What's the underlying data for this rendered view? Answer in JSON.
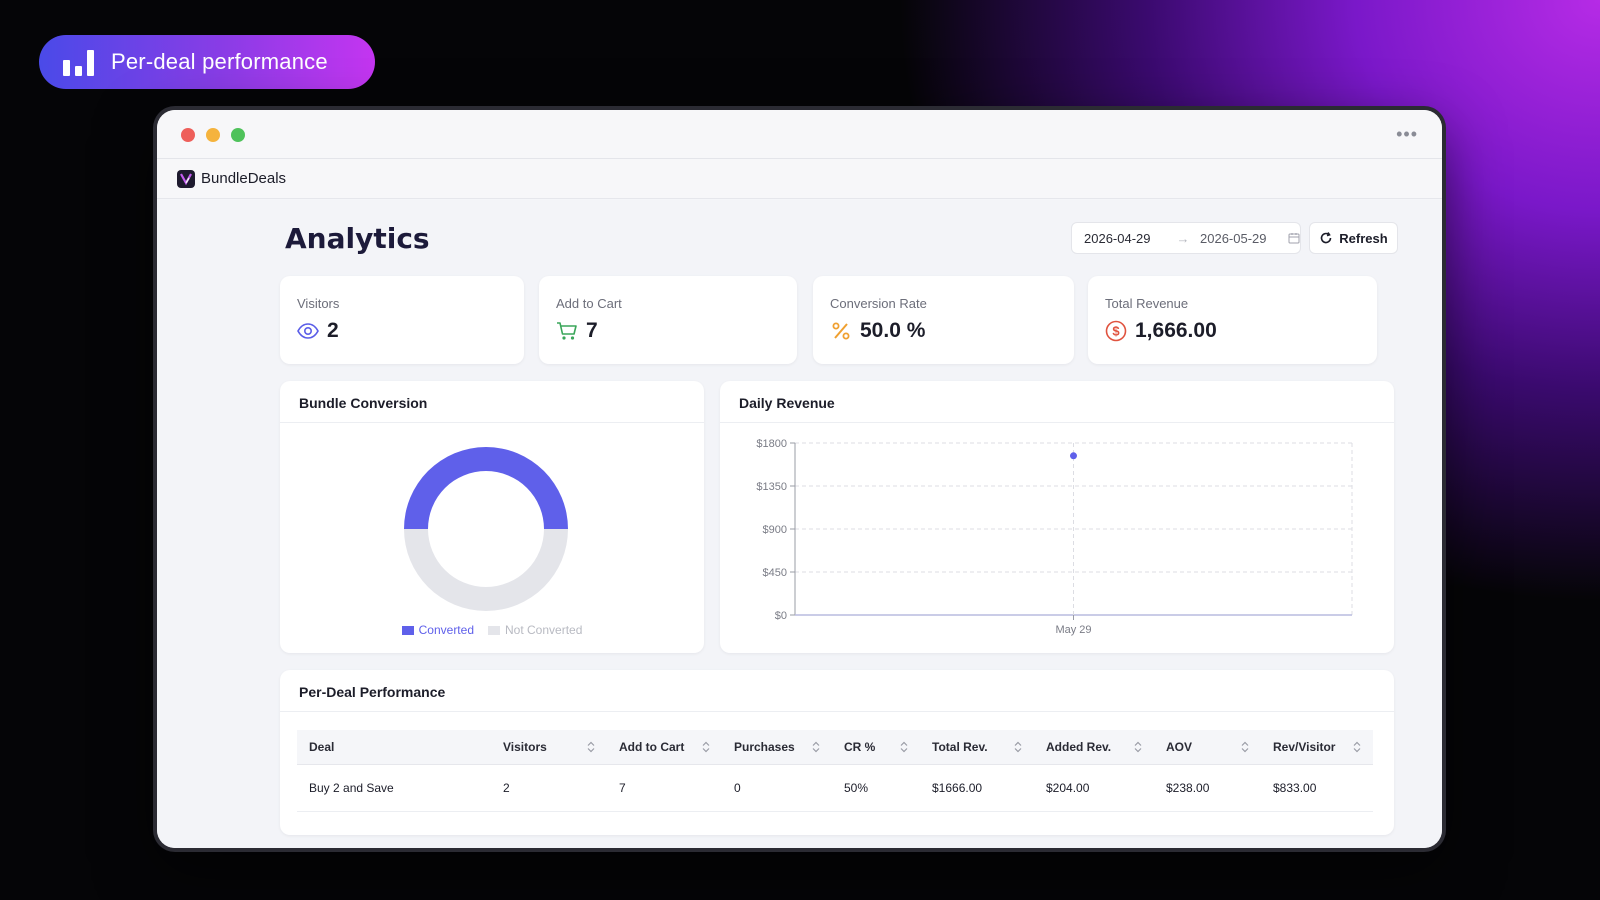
{
  "badge": {
    "label": "Per-deal performance",
    "icon": "bar-chart-icon"
  },
  "window": {
    "controls": [
      "close",
      "minimize",
      "maximize"
    ],
    "more_icon": "•••"
  },
  "app": {
    "name": "BundleDeals"
  },
  "page": {
    "title": "Analytics"
  },
  "date_range": {
    "start": "2026-04-29",
    "arrow": "→",
    "end": "2026-05-29"
  },
  "refresh": {
    "label": "Refresh"
  },
  "kpis": [
    {
      "label": "Visitors",
      "value": "2",
      "icon": "eye-icon",
      "color": "#5b5ee8"
    },
    {
      "label": "Add to Cart",
      "value": "7",
      "icon": "cart-icon",
      "color": "#3aa65a"
    },
    {
      "label": "Conversion Rate",
      "value": "50.0 %",
      "icon": "percent-icon",
      "color": "#f0a030"
    },
    {
      "label": "Total Revenue",
      "value": "1,666.00",
      "icon": "dollar-icon",
      "color": "#e0533f"
    }
  ],
  "bundle_conversion": {
    "title": "Bundle Conversion",
    "legend": [
      {
        "label": "Converted",
        "color": "#5f60ea"
      },
      {
        "label": "Not Converted",
        "color": "#e4e5ea"
      }
    ]
  },
  "daily_revenue": {
    "title": "Daily Revenue"
  },
  "per_deal": {
    "title": "Per-Deal Performance",
    "columns": [
      "Deal",
      "Visitors",
      "Add to Cart",
      "Purchases",
      "CR %",
      "Total Rev.",
      "Added Rev.",
      "AOV",
      "Rev/Visitor"
    ],
    "rows": [
      [
        "Buy 2 and Save",
        "2",
        "7",
        "0",
        "50%",
        "$1666.00",
        "$204.00",
        "$238.00",
        "$833.00"
      ]
    ]
  },
  "chart_data": [
    {
      "type": "pie",
      "title": "Bundle Conversion",
      "style": "half-filled donut",
      "categories": [
        "Converted",
        "Not Converted"
      ],
      "values": [
        50,
        50
      ],
      "colors": [
        "#5f60ea",
        "#e4e5ea"
      ],
      "legend": "bottom"
    },
    {
      "type": "scatter",
      "title": "Daily Revenue",
      "x": [
        "May 29"
      ],
      "series": [
        {
          "values": [
            1666
          ]
        }
      ],
      "yticks": [
        "$0",
        "$450",
        "$900",
        "$1350",
        "$1800"
      ],
      "ylim": [
        0,
        1800
      ],
      "xticks": [
        "May 29"
      ],
      "grid": true,
      "color": "#5f60ea"
    }
  ]
}
